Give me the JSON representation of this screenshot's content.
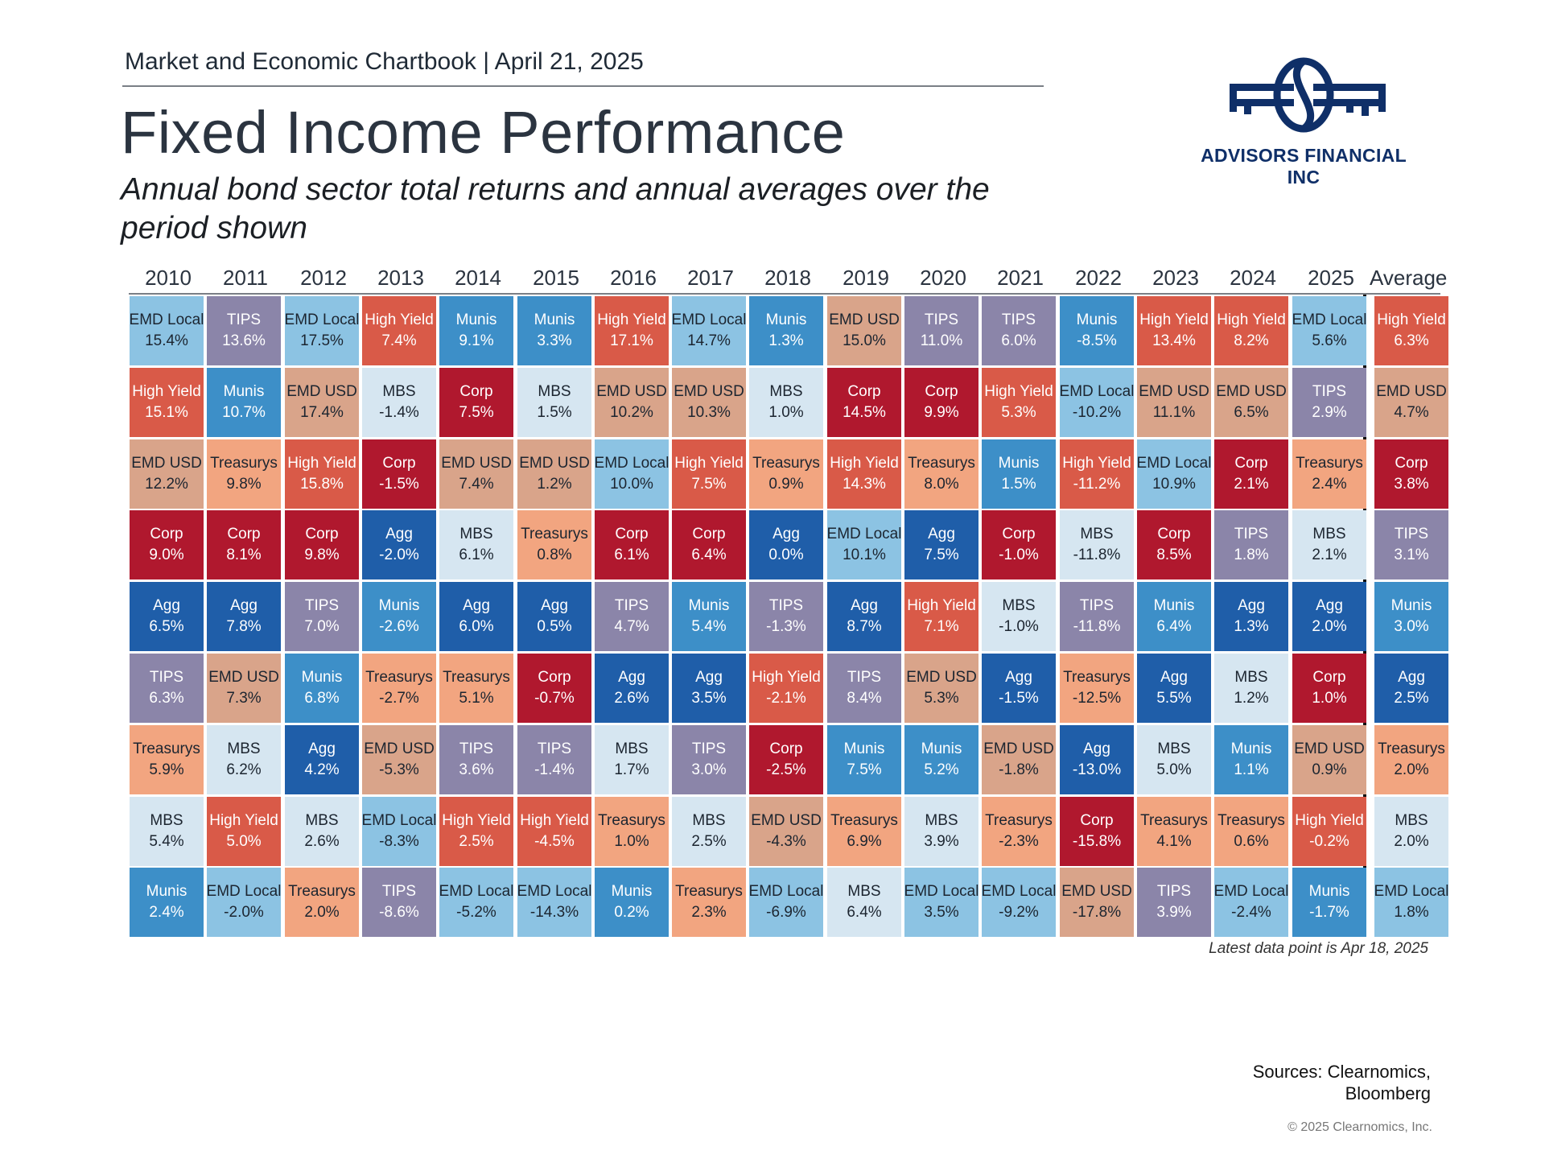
{
  "header": {
    "chartbook": "Market and Economic Chartbook | April 21, 2025",
    "title": "Fixed Income Performance",
    "subtitle": "Annual bond sector total returns and annual averages over the period shown"
  },
  "logo": {
    "text": "ADVISORS FINANCIAL INC",
    "color": "#0f2f68"
  },
  "colors": {
    "EMD Local": "#8cc3e3",
    "TIPS": "#8b85a9",
    "EMD USD": "#d9a48a",
    "High Yield": "#d95a48",
    "Munis": "#3d8fc8",
    "Corp": "#b0182e",
    "MBS": "#d6e6f1",
    "Treasurys": "#f2a580",
    "Agg": "#1f5ea9"
  },
  "text_colors": {
    "EMD Local": "#1c2530",
    "TIPS": "#ffffff",
    "EMD USD": "#1c2530",
    "High Yield": "#ffffff",
    "Munis": "#ffffff",
    "Corp": "#ffffff",
    "MBS": "#1c2530",
    "Treasurys": "#1c2530",
    "Agg": "#ffffff"
  },
  "chart_data": {
    "type": "table",
    "title": "Fixed Income Performance",
    "columns": [
      "2010",
      "2011",
      "2012",
      "2013",
      "2014",
      "2015",
      "2016",
      "2017",
      "2018",
      "2019",
      "2020",
      "2021",
      "2022",
      "2023",
      "2024",
      "2025",
      "Average"
    ],
    "ranked": [
      [
        [
          "EMD Local",
          "15.4%"
        ],
        [
          "High Yield",
          "15.1%"
        ],
        [
          "EMD USD",
          "12.2%"
        ],
        [
          "Corp",
          "9.0%"
        ],
        [
          "Agg",
          "6.5%"
        ],
        [
          "TIPS",
          "6.3%"
        ],
        [
          "Treasurys",
          "5.9%"
        ],
        [
          "MBS",
          "5.4%"
        ],
        [
          "Munis",
          "2.4%"
        ]
      ],
      [
        [
          "TIPS",
          "13.6%"
        ],
        [
          "Munis",
          "10.7%"
        ],
        [
          "Treasurys",
          "9.8%"
        ],
        [
          "Corp",
          "8.1%"
        ],
        [
          "Agg",
          "7.8%"
        ],
        [
          "EMD USD",
          "7.3%"
        ],
        [
          "MBS",
          "6.2%"
        ],
        [
          "High Yield",
          "5.0%"
        ],
        [
          "EMD Local",
          "-2.0%"
        ]
      ],
      [
        [
          "EMD Local",
          "17.5%"
        ],
        [
          "EMD USD",
          "17.4%"
        ],
        [
          "High Yield",
          "15.8%"
        ],
        [
          "Corp",
          "9.8%"
        ],
        [
          "TIPS",
          "7.0%"
        ],
        [
          "Munis",
          "6.8%"
        ],
        [
          "Agg",
          "4.2%"
        ],
        [
          "MBS",
          "2.6%"
        ],
        [
          "Treasurys",
          "2.0%"
        ]
      ],
      [
        [
          "High Yield",
          "7.4%"
        ],
        [
          "MBS",
          "-1.4%"
        ],
        [
          "Corp",
          "-1.5%"
        ],
        [
          "Agg",
          "-2.0%"
        ],
        [
          "Munis",
          "-2.6%"
        ],
        [
          "Treasurys",
          "-2.7%"
        ],
        [
          "EMD USD",
          "-5.3%"
        ],
        [
          "EMD Local",
          "-8.3%"
        ],
        [
          "TIPS",
          "-8.6%"
        ]
      ],
      [
        [
          "Munis",
          "9.1%"
        ],
        [
          "Corp",
          "7.5%"
        ],
        [
          "EMD USD",
          "7.4%"
        ],
        [
          "MBS",
          "6.1%"
        ],
        [
          "Agg",
          "6.0%"
        ],
        [
          "Treasurys",
          "5.1%"
        ],
        [
          "TIPS",
          "3.6%"
        ],
        [
          "High Yield",
          "2.5%"
        ],
        [
          "EMD Local",
          "-5.2%"
        ]
      ],
      [
        [
          "Munis",
          "3.3%"
        ],
        [
          "MBS",
          "1.5%"
        ],
        [
          "EMD USD",
          "1.2%"
        ],
        [
          "Treasurys",
          "0.8%"
        ],
        [
          "Agg",
          "0.5%"
        ],
        [
          "Corp",
          "-0.7%"
        ],
        [
          "TIPS",
          "-1.4%"
        ],
        [
          "High Yield",
          "-4.5%"
        ],
        [
          "EMD Local",
          "-14.3%"
        ]
      ],
      [
        [
          "High Yield",
          "17.1%"
        ],
        [
          "EMD USD",
          "10.2%"
        ],
        [
          "EMD Local",
          "10.0%"
        ],
        [
          "Corp",
          "6.1%"
        ],
        [
          "TIPS",
          "4.7%"
        ],
        [
          "Agg",
          "2.6%"
        ],
        [
          "MBS",
          "1.7%"
        ],
        [
          "Treasurys",
          "1.0%"
        ],
        [
          "Munis",
          "0.2%"
        ]
      ],
      [
        [
          "EMD Local",
          "14.7%"
        ],
        [
          "EMD USD",
          "10.3%"
        ],
        [
          "High Yield",
          "7.5%"
        ],
        [
          "Corp",
          "6.4%"
        ],
        [
          "Munis",
          "5.4%"
        ],
        [
          "Agg",
          "3.5%"
        ],
        [
          "TIPS",
          "3.0%"
        ],
        [
          "MBS",
          "2.5%"
        ],
        [
          "Treasurys",
          "2.3%"
        ]
      ],
      [
        [
          "Munis",
          "1.3%"
        ],
        [
          "MBS",
          "1.0%"
        ],
        [
          "Treasurys",
          "0.9%"
        ],
        [
          "Agg",
          "0.0%"
        ],
        [
          "TIPS",
          "-1.3%"
        ],
        [
          "High Yield",
          "-2.1%"
        ],
        [
          "Corp",
          "-2.5%"
        ],
        [
          "EMD USD",
          "-4.3%"
        ],
        [
          "EMD Local",
          "-6.9%"
        ]
      ],
      [
        [
          "EMD USD",
          "15.0%"
        ],
        [
          "Corp",
          "14.5%"
        ],
        [
          "High Yield",
          "14.3%"
        ],
        [
          "EMD Local",
          "10.1%"
        ],
        [
          "Agg",
          "8.7%"
        ],
        [
          "TIPS",
          "8.4%"
        ],
        [
          "Munis",
          "7.5%"
        ],
        [
          "Treasurys",
          "6.9%"
        ],
        [
          "MBS",
          "6.4%"
        ]
      ],
      [
        [
          "TIPS",
          "11.0%"
        ],
        [
          "Corp",
          "9.9%"
        ],
        [
          "Treasurys",
          "8.0%"
        ],
        [
          "Agg",
          "7.5%"
        ],
        [
          "High Yield",
          "7.1%"
        ],
        [
          "EMD USD",
          "5.3%"
        ],
        [
          "Munis",
          "5.2%"
        ],
        [
          "MBS",
          "3.9%"
        ],
        [
          "EMD Local",
          "3.5%"
        ]
      ],
      [
        [
          "TIPS",
          "6.0%"
        ],
        [
          "High Yield",
          "5.3%"
        ],
        [
          "Munis",
          "1.5%"
        ],
        [
          "Corp",
          "-1.0%"
        ],
        [
          "MBS",
          "-1.0%"
        ],
        [
          "Agg",
          "-1.5%"
        ],
        [
          "EMD USD",
          "-1.8%"
        ],
        [
          "Treasurys",
          "-2.3%"
        ],
        [
          "EMD Local",
          "-9.2%"
        ]
      ],
      [
        [
          "Munis",
          "-8.5%"
        ],
        [
          "EMD Local",
          "-10.2%"
        ],
        [
          "High Yield",
          "-11.2%"
        ],
        [
          "MBS",
          "-11.8%"
        ],
        [
          "TIPS",
          "-11.8%"
        ],
        [
          "Treasurys",
          "-12.5%"
        ],
        [
          "Agg",
          "-13.0%"
        ],
        [
          "Corp",
          "-15.8%"
        ],
        [
          "EMD USD",
          "-17.8%"
        ]
      ],
      [
        [
          "High Yield",
          "13.4%"
        ],
        [
          "EMD USD",
          "11.1%"
        ],
        [
          "EMD Local",
          "10.9%"
        ],
        [
          "Corp",
          "8.5%"
        ],
        [
          "Munis",
          "6.4%"
        ],
        [
          "Agg",
          "5.5%"
        ],
        [
          "MBS",
          "5.0%"
        ],
        [
          "Treasurys",
          "4.1%"
        ],
        [
          "TIPS",
          "3.9%"
        ]
      ],
      [
        [
          "High Yield",
          "8.2%"
        ],
        [
          "EMD USD",
          "6.5%"
        ],
        [
          "Corp",
          "2.1%"
        ],
        [
          "TIPS",
          "1.8%"
        ],
        [
          "Agg",
          "1.3%"
        ],
        [
          "MBS",
          "1.2%"
        ],
        [
          "Munis",
          "1.1%"
        ],
        [
          "Treasurys",
          "0.6%"
        ],
        [
          "EMD Local",
          "-2.4%"
        ]
      ],
      [
        [
          "EMD Local",
          "5.6%"
        ],
        [
          "TIPS",
          "2.9%"
        ],
        [
          "Treasurys",
          "2.4%"
        ],
        [
          "MBS",
          "2.1%"
        ],
        [
          "Agg",
          "2.0%"
        ],
        [
          "Corp",
          "1.0%"
        ],
        [
          "EMD USD",
          "0.9%"
        ],
        [
          "High Yield",
          "-0.2%"
        ],
        [
          "Munis",
          "-1.7%"
        ]
      ],
      [
        [
          "High Yield",
          "6.3%"
        ],
        [
          "EMD USD",
          "4.7%"
        ],
        [
          "Corp",
          "3.8%"
        ],
        [
          "TIPS",
          "3.1%"
        ],
        [
          "Munis",
          "3.0%"
        ],
        [
          "Agg",
          "2.5%"
        ],
        [
          "Treasurys",
          "2.0%"
        ],
        [
          "MBS",
          "2.0%"
        ],
        [
          "EMD Local",
          "1.8%"
        ]
      ]
    ]
  },
  "footnote": "Latest data point is Apr 18, 2025",
  "sources": [
    "Sources: Clearnomics,",
    "Bloomberg"
  ],
  "copyright": "© 2025 Clearnomics, Inc."
}
